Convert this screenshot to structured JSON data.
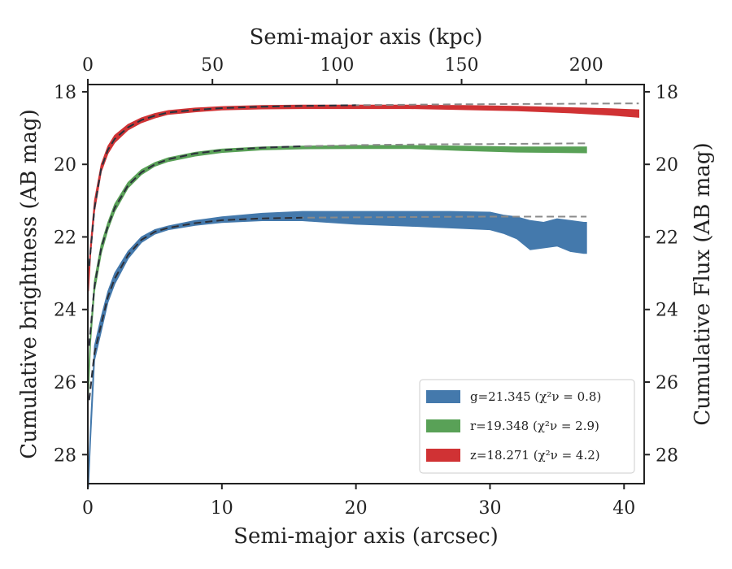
{
  "chart_data": {
    "type": "area",
    "xlabel": "Semi-major axis (arcsec)",
    "ylabel": "Cumulative brightness (AB mag)",
    "x2label": "Semi-major axis (kpc)",
    "y2label": "Cumulative Flux (AB mag)",
    "xlim": [
      0,
      41.5
    ],
    "ylim": [
      28.8,
      17.8
    ],
    "y_inverted": true,
    "x_ticks": [
      0,
      10,
      20,
      30,
      40
    ],
    "y_ticks": [
      18,
      20,
      22,
      24,
      26,
      28
    ],
    "x2_ticks": [
      0,
      50,
      100,
      150,
      200
    ],
    "x2_per_x": 5.38,
    "legend_position": "lower-right",
    "grid": false,
    "series": [
      {
        "key": "g",
        "name": "g=21.345 (χ²ν = 0.8)",
        "color": "#4479ac",
        "x": [
          0.05,
          0.2,
          0.5,
          1,
          1.5,
          2,
          3,
          4,
          5,
          6,
          8,
          10,
          13,
          16,
          20,
          24,
          27,
          30,
          31,
          32,
          33,
          34,
          35,
          36,
          37,
          37.2
        ],
        "y_upper": [
          28.6,
          27.2,
          25.0,
          24.2,
          23.5,
          23.0,
          22.4,
          22.0,
          21.8,
          21.7,
          21.55,
          21.45,
          21.35,
          21.3,
          21.3,
          21.3,
          21.3,
          21.32,
          21.4,
          21.45,
          21.55,
          21.6,
          21.5,
          21.55,
          21.6,
          21.6
        ],
        "y_lower": [
          28.9,
          27.6,
          25.4,
          24.6,
          23.8,
          23.3,
          22.6,
          22.15,
          21.92,
          21.8,
          21.68,
          21.6,
          21.55,
          21.55,
          21.65,
          21.7,
          21.75,
          21.8,
          21.9,
          22.05,
          22.35,
          22.3,
          22.25,
          22.4,
          22.45,
          22.45
        ]
      },
      {
        "key": "r",
        "name": "r=19.348 (χ²ν = 2.9)",
        "color": "#59a157",
        "x": [
          0.05,
          0.2,
          0.5,
          1,
          1.5,
          2,
          3,
          4,
          5,
          6,
          8,
          10,
          13,
          16,
          20,
          24,
          28,
          32,
          37.2
        ],
        "y_upper": [
          26.0,
          24.6,
          23.2,
          22.2,
          21.6,
          21.1,
          20.5,
          20.15,
          19.95,
          19.82,
          19.67,
          19.58,
          19.52,
          19.5,
          19.48,
          19.48,
          19.5,
          19.52,
          19.52
        ],
        "y_lower": [
          26.3,
          24.9,
          23.5,
          22.45,
          21.8,
          21.3,
          20.65,
          20.28,
          20.05,
          19.92,
          19.77,
          19.67,
          19.6,
          19.57,
          19.56,
          19.56,
          19.62,
          19.66,
          19.68
        ]
      },
      {
        "key": "z",
        "name": "z=18.271 (χ²ν = 4.2)",
        "color": "#d03234",
        "x": [
          0.05,
          0.2,
          0.5,
          1,
          1.5,
          2,
          3,
          4,
          5,
          6,
          8,
          10,
          13,
          16,
          20,
          24,
          28,
          32,
          36,
          39,
          41.1
        ],
        "y_upper": [
          23.2,
          22.2,
          21.0,
          20.0,
          19.5,
          19.2,
          18.9,
          18.72,
          18.6,
          18.52,
          18.45,
          18.41,
          18.38,
          18.37,
          18.37,
          18.37,
          18.38,
          18.4,
          18.44,
          18.47,
          18.5
        ],
        "y_lower": [
          23.5,
          22.5,
          21.3,
          20.2,
          19.7,
          19.4,
          19.05,
          18.85,
          18.72,
          18.62,
          18.55,
          18.5,
          18.47,
          18.46,
          18.46,
          18.46,
          18.49,
          18.52,
          18.58,
          18.64,
          18.7
        ]
      }
    ],
    "fits": [
      {
        "key": "g",
        "x": [
          0.1,
          0.5,
          1,
          1.5,
          2,
          3,
          4,
          5,
          6,
          8,
          10,
          13,
          16,
          20,
          25,
          30,
          37.2
        ],
        "y": [
          26.5,
          25.2,
          24.4,
          23.65,
          23.15,
          22.5,
          22.08,
          21.86,
          21.75,
          21.62,
          21.54,
          21.49,
          21.47,
          21.46,
          21.45,
          21.44,
          21.44
        ]
      },
      {
        "key": "r",
        "x": [
          0.1,
          0.5,
          1,
          1.5,
          2,
          3,
          4,
          5,
          6,
          8,
          10,
          13,
          16,
          20,
          25,
          30,
          37.2
        ],
        "y": [
          25.0,
          23.35,
          22.3,
          21.7,
          21.2,
          20.58,
          20.22,
          20.0,
          19.86,
          19.7,
          19.61,
          19.54,
          19.5,
          19.47,
          19.45,
          19.44,
          19.42
        ]
      },
      {
        "key": "z",
        "x": [
          0.1,
          0.5,
          1,
          1.5,
          2,
          3,
          4,
          5,
          6,
          8,
          10,
          13,
          16,
          20,
          25,
          30,
          35,
          41.1
        ],
        "y": [
          22.8,
          21.2,
          20.1,
          19.6,
          19.3,
          18.98,
          18.78,
          18.66,
          18.57,
          18.5,
          18.45,
          18.41,
          18.39,
          18.37,
          18.35,
          18.34,
          18.33,
          18.32
        ]
      }
    ]
  }
}
